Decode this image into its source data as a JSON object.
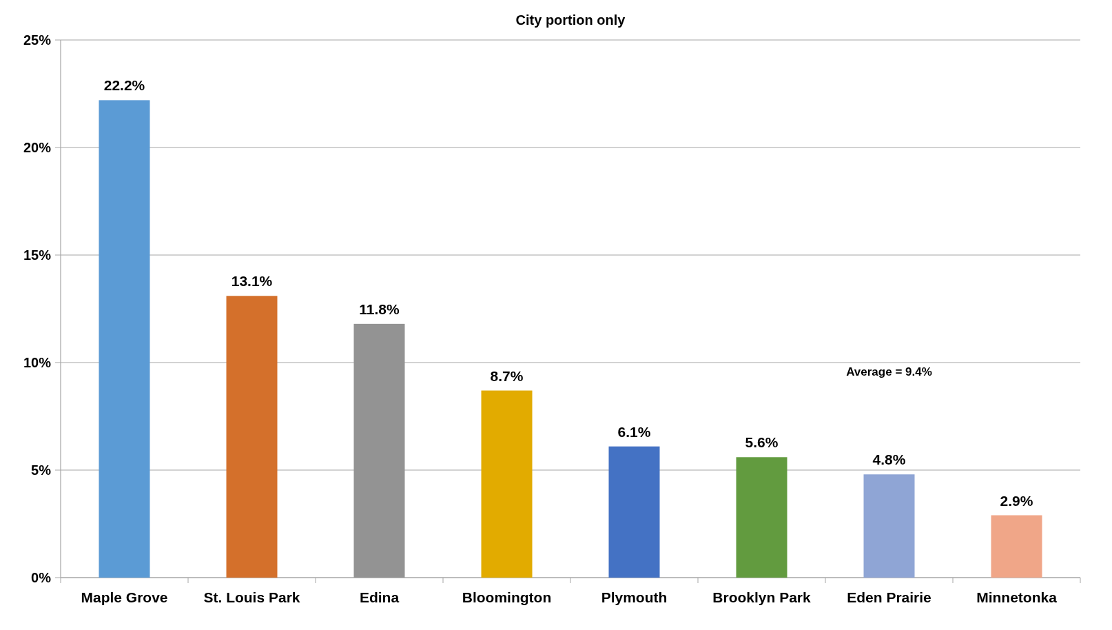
{
  "chart_data": {
    "type": "bar",
    "title": "City portion only",
    "categories": [
      "Maple Grove",
      "St. Louis Park",
      "Edina",
      "Bloomington",
      "Plymouth",
      "Brooklyn Park",
      "Eden Prairie",
      "Minnetonka"
    ],
    "values": [
      22.2,
      13.1,
      11.8,
      8.7,
      6.1,
      5.6,
      4.8,
      2.9
    ],
    "value_labels": [
      "22.2%",
      "13.1%",
      "11.8%",
      "8.7%",
      "6.1%",
      "5.6%",
      "4.8%",
      "2.9%"
    ],
    "colors": [
      "#5b9bd5",
      "#d4702b",
      "#939393",
      "#e2ab00",
      "#4472c4",
      "#629b3f",
      "#8fa5d5",
      "#f0a688"
    ],
    "ylim": [
      0,
      25
    ],
    "yticks": [
      {
        "value": 0,
        "label": "0%"
      },
      {
        "value": 5,
        "label": "5%"
      },
      {
        "value": 10,
        "label": "10%"
      },
      {
        "value": 15,
        "label": "15%"
      },
      {
        "value": 20,
        "label": "20%"
      },
      {
        "value": 25,
        "label": "25%"
      }
    ],
    "grid": "y",
    "annotations": [
      "Average = 9.4%"
    ]
  }
}
